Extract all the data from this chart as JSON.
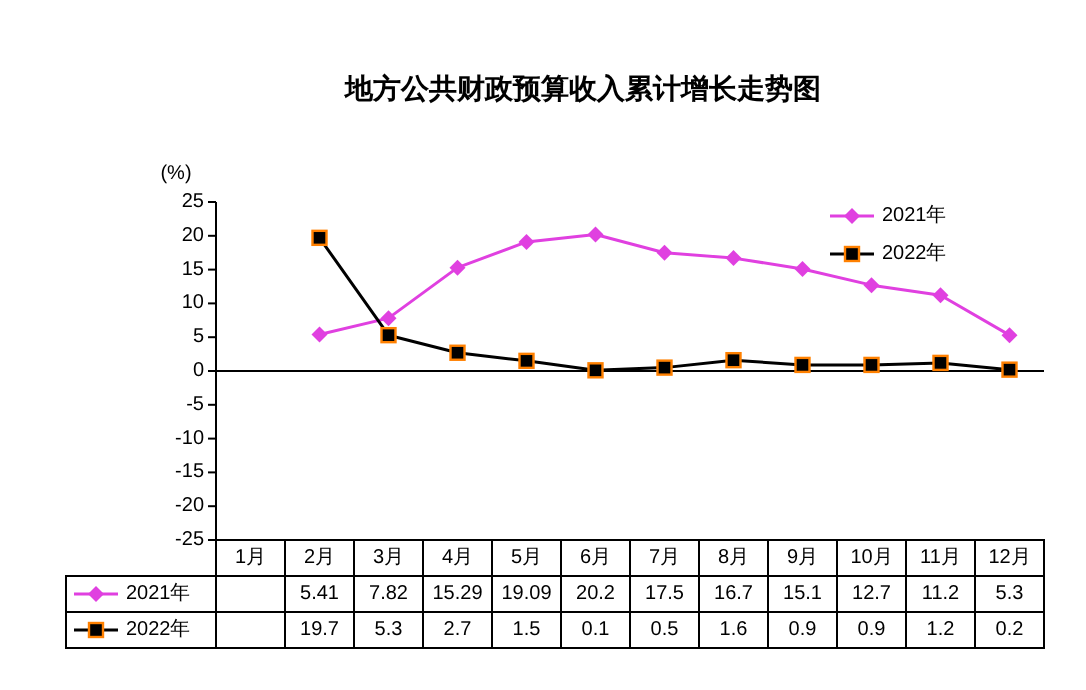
{
  "chart_data": {
    "type": "line",
    "title": "地方公共财政预算收入累计增长走势图",
    "ylabel": "(%)",
    "categories": [
      "1月",
      "2月",
      "3月",
      "4月",
      "5月",
      "6月",
      "7月",
      "8月",
      "9月",
      "10月",
      "11月",
      "12月"
    ],
    "series": [
      {
        "name": "2021年",
        "color": "#e040e0",
        "marker": "diamond",
        "values": [
          null,
          5.41,
          7.82,
          15.29,
          19.09,
          20.2,
          17.5,
          16.7,
          15.1,
          12.7,
          11.2,
          5.3
        ]
      },
      {
        "name": "2022年",
        "color": "#000000",
        "marker": "square",
        "values": [
          null,
          19.7,
          5.3,
          2.7,
          1.5,
          0.1,
          0.5,
          1.6,
          0.9,
          0.9,
          1.2,
          0.2
        ]
      }
    ],
    "ylim": [
      -25,
      25
    ],
    "yticks": [
      -25,
      -20,
      -15,
      -10,
      -5,
      0,
      5,
      10,
      15,
      20,
      25
    ],
    "legend": "top right",
    "data_labels": true
  }
}
